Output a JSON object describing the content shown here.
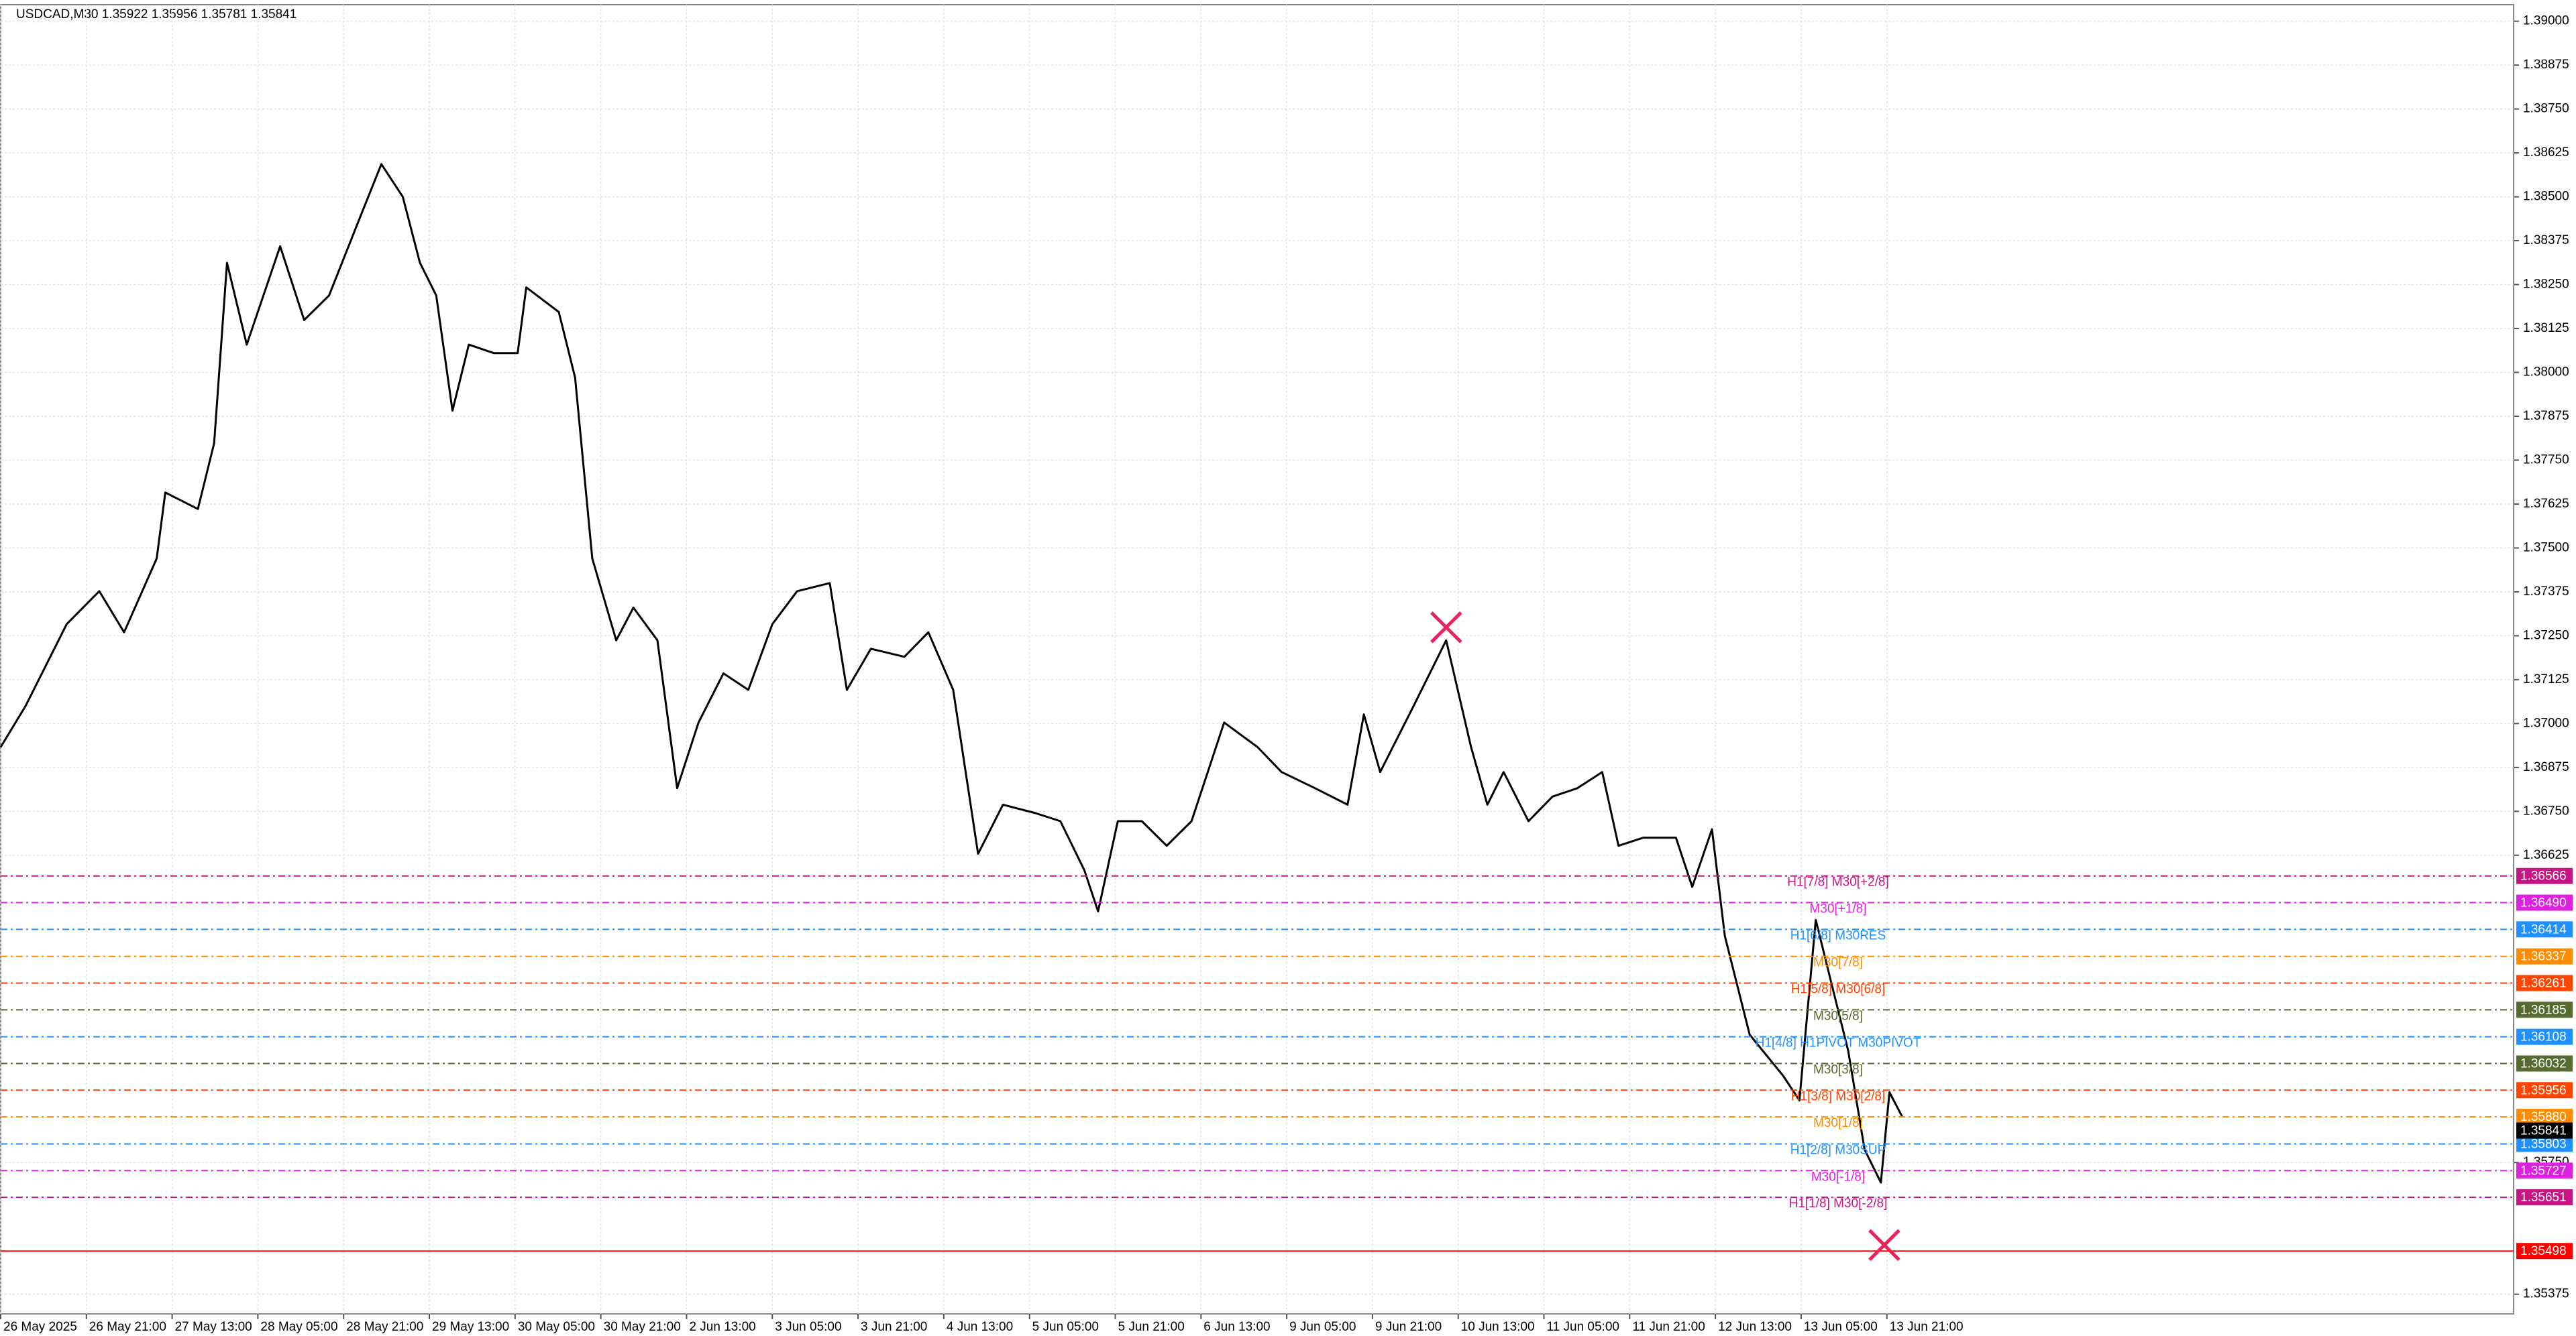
{
  "chart_data": {
    "type": "line",
    "title": "USDCAD,M30  1.35922 1.35956 1.35781 1.35841",
    "color": "#000000",
    "grid": true,
    "xlim": [
      0,
      29.31
    ],
    "ylim": [
      1.35319,
      1.39047
    ],
    "xticks": [
      {
        "value": 0,
        "label": "26 May 2025"
      },
      {
        "value": 1,
        "label": "26 May 21:00"
      },
      {
        "value": 2,
        "label": "27 May 13:00"
      },
      {
        "value": 3,
        "label": "28 May 05:00"
      },
      {
        "value": 4,
        "label": "28 May 21:00"
      },
      {
        "value": 5,
        "label": "29 May 13:00"
      },
      {
        "value": 6,
        "label": "30 May 05:00"
      },
      {
        "value": 7,
        "label": "30 May 21:00"
      },
      {
        "value": 8,
        "label": "2 Jun 13:00"
      },
      {
        "value": 9,
        "label": "3 Jun 05:00"
      },
      {
        "value": 10,
        "label": "3 Jun 21:00"
      },
      {
        "value": 11,
        "label": "4 Jun 13:00"
      },
      {
        "value": 12,
        "label": "5 Jun 05:00"
      },
      {
        "value": 13,
        "label": "5 Jun 21:00"
      },
      {
        "value": 14,
        "label": "6 Jun 13:00"
      },
      {
        "value": 15,
        "label": "9 Jun 05:00"
      },
      {
        "value": 16,
        "label": "9 Jun 21:00"
      },
      {
        "value": 17,
        "label": "10 Jun 13:00"
      },
      {
        "value": 18,
        "label": "11 Jun 05:00"
      },
      {
        "value": 19,
        "label": "11 Jun 21:00"
      },
      {
        "value": 20,
        "label": "12 Jun 13:00"
      },
      {
        "value": 21,
        "label": "13 Jun 05:00"
      },
      {
        "value": 22,
        "label": "13 Jun 21:00"
      }
    ],
    "yticks": [
      {
        "value": 1.39,
        "label": "1.39000"
      },
      {
        "value": 1.38875,
        "label": "1.38875"
      },
      {
        "value": 1.3875,
        "label": "1.38750"
      },
      {
        "value": 1.38625,
        "label": "1.38625"
      },
      {
        "value": 1.385,
        "label": "1.38500"
      },
      {
        "value": 1.38375,
        "label": "1.38375"
      },
      {
        "value": 1.3825,
        "label": "1.38250"
      },
      {
        "value": 1.38125,
        "label": "1.38125"
      },
      {
        "value": 1.38,
        "label": "1.38000"
      },
      {
        "value": 1.37875,
        "label": "1.37875"
      },
      {
        "value": 1.3775,
        "label": "1.37750"
      },
      {
        "value": 1.37625,
        "label": "1.37625"
      },
      {
        "value": 1.375,
        "label": "1.37500"
      },
      {
        "value": 1.37375,
        "label": "1.37375"
      },
      {
        "value": 1.3725,
        "label": "1.37250"
      },
      {
        "value": 1.37125,
        "label": "1.37125"
      },
      {
        "value": 1.37,
        "label": "1.37000"
      },
      {
        "value": 1.36875,
        "label": "1.36875"
      },
      {
        "value": 1.3675,
        "label": "1.36750"
      },
      {
        "value": 1.36625,
        "label": "1.36625"
      },
      {
        "value": 1.3575,
        "label": "1.35750"
      },
      {
        "value": 1.35375,
        "label": "1.35375"
      }
    ],
    "x": [
      0,
      0.29,
      0.77,
      1.15,
      1.44,
      1.82,
      1.92,
      2.3,
      2.49,
      2.64,
      2.87,
      3.26,
      3.54,
      3.83,
      4.21,
      4.44,
      4.69,
      4.89,
      5.08,
      5.27,
      5.46,
      5.75,
      6.03,
      6.13,
      6.51,
      6.7,
      6.9,
      7.18,
      7.38,
      7.66,
      7.89,
      8.14,
      8.43,
      8.72,
      9.0,
      9.29,
      9.67,
      9.87,
      10.15,
      10.54,
      10.82,
      11.11,
      11.4,
      11.69,
      12.07,
      12.36,
      12.64,
      12.8,
      13.03,
      13.31,
      13.6,
      13.89,
      14.27,
      14.66,
      14.94,
      15.33,
      15.71,
      15.9,
      16.09,
      16.48,
      16.86,
      17.15,
      17.34,
      17.53,
      17.82,
      18.1,
      18.39,
      18.68,
      18.87,
      19.16,
      19.54,
      19.73,
      19.96,
      20.11,
      20.4,
      20.79,
      20.98,
      21.17,
      21.36,
      21.55,
      21.74,
      21.93,
      22.03,
      22.18
    ],
    "values": [
      1.36933,
      1.3705,
      1.37283,
      1.37377,
      1.3726,
      1.3747,
      1.37658,
      1.37611,
      1.37798,
      1.38312,
      1.38079,
      1.38359,
      1.38149,
      1.38219,
      1.38453,
      1.38593,
      1.385,
      1.38312,
      1.38219,
      1.37891,
      1.38079,
      1.38055,
      1.38055,
      1.38242,
      1.38172,
      1.37985,
      1.3747,
      1.37237,
      1.3733,
      1.37237,
      1.36816,
      1.37003,
      1.37143,
      1.37096,
      1.37283,
      1.37377,
      1.374,
      1.37096,
      1.37213,
      1.3719,
      1.3726,
      1.37096,
      1.36629,
      1.36769,
      1.36745,
      1.36722,
      1.36582,
      1.36465,
      1.36722,
      1.36722,
      1.36652,
      1.36722,
      1.37003,
      1.36933,
      1.36862,
      1.36816,
      1.36769,
      1.37026,
      1.36862,
      1.3705,
      1.37237,
      1.36933,
      1.36769,
      1.36862,
      1.36722,
      1.36792,
      1.36816,
      1.36862,
      1.36652,
      1.36675,
      1.36675,
      1.36535,
      1.36699,
      1.36395,
      1.36114,
      1.35997,
      1.35927,
      1.36441,
      1.36254,
      1.36067,
      1.35787,
      1.35693,
      1.3595,
      1.3588
    ],
    "levels": [
      {
        "label": "H1[7/8] M30[+2/8]",
        "value": 1.36566,
        "value_label": "1.36566",
        "color": "#c71585"
      },
      {
        "label": "M30[+1/8]",
        "value": 1.3649,
        "value_label": "1.36490",
        "color": "#e020e0"
      },
      {
        "label": "H1[6/8] M30RES",
        "value": 1.36414,
        "value_label": "1.36414",
        "color": "#1e90ff"
      },
      {
        "label": "M30[7/8]",
        "value": 1.36337,
        "value_label": "1.36337",
        "color": "#ff8c00"
      },
      {
        "label": "H1[5/8] M30[6/8]",
        "value": 1.36261,
        "value_label": "1.36261",
        "color": "#ff4500"
      },
      {
        "label": "M30[5/8]",
        "value": 1.36185,
        "value_label": "1.36185",
        "color": "#556b2f"
      },
      {
        "label": "H1[4/8] H1PIVOT M30PIVOT",
        "value": 1.36108,
        "value_label": "1.36108",
        "color": "#1e90ff"
      },
      {
        "label": "M30[3/8]",
        "value": 1.36032,
        "value_label": "1.36032",
        "color": "#556b2f"
      },
      {
        "label": "H1[3/8] M30[2/8]",
        "value": 1.35956,
        "value_label": "1.35956",
        "color": "#ff4500"
      },
      {
        "label": "M30[1/8]",
        "value": 1.3588,
        "value_label": "1.35880",
        "color": "#ff8c00"
      },
      {
        "label": "H1[2/8] M30SUP",
        "value": 1.35803,
        "value_label": "1.35803",
        "color": "#1e90ff"
      },
      {
        "label": "M30[-1/8]",
        "value": 1.35727,
        "value_label": "1.35727",
        "color": "#e020e0"
      },
      {
        "label": "H1[1/8] M30[-2/8]",
        "value": 1.35651,
        "value_label": "1.35651",
        "color": "#c71585"
      },
      {
        "value": 1.35498,
        "value_label": "1.35498",
        "color": "#ff0000"
      }
    ],
    "bid": {
      "value": 1.35841,
      "value_label": "1.35841",
      "color": "#000000"
    },
    "markers": [
      {
        "x": 16.86,
        "y": 1.37274,
        "color": "#e8245a"
      },
      {
        "x": 21.97,
        "y": 1.35515,
        "color": "#e8245a"
      }
    ]
  }
}
